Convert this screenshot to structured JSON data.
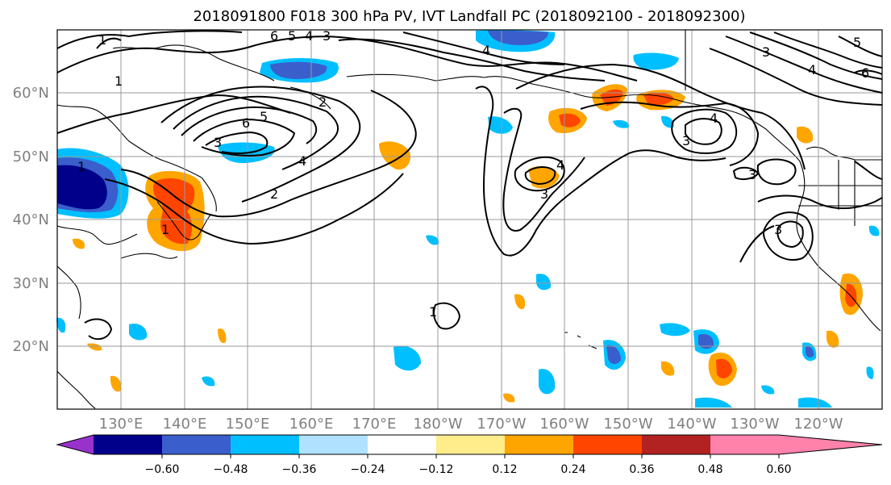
{
  "title": "2018091800 F018 300 hPa PV, IVT Landfall PC (2018092100 - 2018092300)",
  "lat_labels": [
    "60°N",
    "50°N",
    "40°N",
    "30°N",
    "20°N"
  ],
  "lon_labels": [
    "130°E",
    "140°E",
    "150°E",
    "160°E",
    "170°E",
    "180°W",
    "170°W",
    "160°W",
    "150°W",
    "140°W",
    "130°W",
    "120°W"
  ],
  "colorbar": {
    "colors": [
      "#9932cc",
      "#00008b",
      "#3a5fcd",
      "#00bfff",
      "#b0e2ff",
      "#ffffff",
      "#ffec8b",
      "#ffa500",
      "#ff4500",
      "#b22222",
      "#ff82ab"
    ],
    "tick_labels": [
      "−0.60",
      "−0.48",
      "−0.36",
      "−0.24",
      "−0.12",
      "0.12",
      "0.24",
      "0.36",
      "0.48",
      "0.60"
    ]
  },
  "contour_labels": [
    "6",
    "5",
    "4",
    "3",
    "2",
    "1",
    "6",
    "5",
    "4",
    "3",
    "2",
    "1",
    "4",
    "3",
    "1",
    "4",
    "3",
    "4",
    "3",
    "3",
    "1",
    "6",
    "5",
    "4",
    "3",
    "1"
  ]
}
